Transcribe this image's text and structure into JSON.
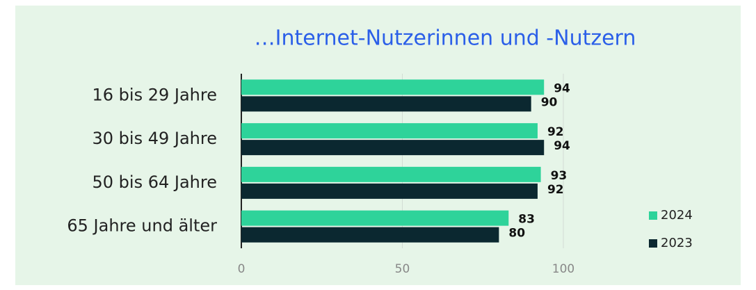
{
  "chart_data": {
    "type": "hbar",
    "title": "…Internet-Nutzerinnen und -Nutzern",
    "categories": [
      "16 bis 29 Jahre",
      "30 bis 49 Jahre",
      "50 bis 64 Jahre",
      "65 Jahre und älter"
    ],
    "series": [
      {
        "name": "2024",
        "color": "#2ed39a",
        "values": [
          94,
          92,
          93,
          83
        ]
      },
      {
        "name": "2023",
        "color": "#0b2830",
        "values": [
          90,
          94,
          92,
          80
        ]
      }
    ],
    "xlim": [
      0,
      100
    ],
    "xticks": [
      0,
      50,
      100
    ],
    "grid": true,
    "legend": "right"
  }
}
